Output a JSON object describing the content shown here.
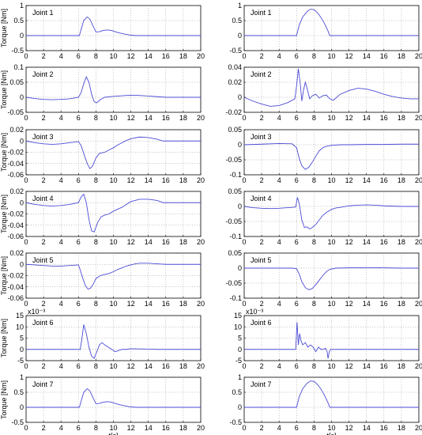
{
  "figure": {
    "line_color": "#4b4bd6"
  },
  "chart_data": [
    {
      "id": "L1",
      "type": "line",
      "title": "Joint 1",
      "ylabel": "Torque [Nm]",
      "xlabel": "",
      "xlim": [
        0,
        20
      ],
      "ylim": [
        -0.5,
        1
      ],
      "xticks": [
        "0",
        "2",
        "4",
        "6",
        "8",
        "10",
        "12",
        "14",
        "16",
        "18",
        "20"
      ],
      "yticks": [
        "1",
        "0.5",
        "0",
        "-0.5"
      ],
      "ytick_values": [
        1,
        0.5,
        0,
        -0.5
      ],
      "exponent": "",
      "x": [
        0,
        6.1,
        6.3,
        6.6,
        7.0,
        7.3,
        7.7,
        8.0,
        8.4,
        8.8,
        9.3,
        9.8,
        10.3,
        10.8,
        11.3,
        11.8,
        12.2,
        12.6,
        20
      ],
      "y": [
        0,
        0,
        0.2,
        0.5,
        0.62,
        0.55,
        0.3,
        0.12,
        0.13,
        0.17,
        0.19,
        0.17,
        0.12,
        0.08,
        0.05,
        0.02,
        0.01,
        0,
        0
      ]
    },
    {
      "id": "R1",
      "type": "line",
      "title": "Joint 1",
      "ylabel": "",
      "xlabel": "",
      "xlim": [
        0,
        20
      ],
      "ylim": [
        -0.5,
        1
      ],
      "xticks": [
        "0",
        "2",
        "4",
        "6",
        "8",
        "10",
        "12",
        "14",
        "16",
        "18",
        "20"
      ],
      "yticks": [
        "1",
        "0.5",
        "0",
        "-0.5"
      ],
      "ytick_values": [
        1,
        0.5,
        0,
        -0.5
      ],
      "exponent": "",
      "x": [
        0,
        6.0,
        6.3,
        6.7,
        7.2,
        7.6,
        8.0,
        8.4,
        8.8,
        9.2,
        9.6,
        9.8,
        20
      ],
      "y": [
        0,
        0,
        0.35,
        0.62,
        0.8,
        0.88,
        0.86,
        0.76,
        0.6,
        0.4,
        0.15,
        0,
        0
      ]
    },
    {
      "id": "L2",
      "type": "line",
      "title": "Joint 2",
      "ylabel": "Torque [Nm]",
      "xlabel": "",
      "xlim": [
        0,
        20
      ],
      "ylim": [
        -0.05,
        0.1
      ],
      "xticks": [
        "0",
        "2",
        "4",
        "6",
        "8",
        "10",
        "12",
        "14",
        "16",
        "18",
        "20"
      ],
      "yticks": [
        "0.1",
        "0.05",
        "0",
        "-0.05"
      ],
      "ytick_values": [
        0.1,
        0.05,
        0,
        -0.05
      ],
      "exponent": "",
      "x": [
        0,
        1,
        2,
        3,
        4,
        5,
        6,
        6.3,
        6.6,
        6.9,
        7.2,
        7.5,
        7.8,
        8.1,
        8.5,
        9,
        10,
        11,
        12,
        13,
        14,
        15,
        16,
        20
      ],
      "y": [
        0,
        -0.004,
        -0.007,
        -0.008,
        -0.007,
        -0.005,
        0,
        0.015,
        0.045,
        0.068,
        0.05,
        0.01,
        -0.015,
        -0.018,
        -0.008,
        0,
        0.003,
        0.005,
        0.007,
        0.006,
        0.004,
        0.002,
        0,
        0
      ]
    },
    {
      "id": "R2",
      "type": "line",
      "title": "Joint 2",
      "ylabel": "",
      "xlabel": "",
      "xlim": [
        0,
        20
      ],
      "ylim": [
        -0.02,
        0.04
      ],
      "xticks": [
        "0",
        "2",
        "4",
        "6",
        "8",
        "10",
        "12",
        "14",
        "16",
        "18",
        "20"
      ],
      "yticks": [
        "0.04",
        "0.02",
        "0",
        "-0.02"
      ],
      "ytick_values": [
        0.04,
        0.02,
        0,
        -0.02
      ],
      "exponent": "",
      "x": [
        0,
        1,
        2,
        3,
        4,
        5,
        5.8,
        6.0,
        6.2,
        6.4,
        6.6,
        6.8,
        7.0,
        7.2,
        7.5,
        7.8,
        8.2,
        8.6,
        9.0,
        9.4,
        9.8,
        10.2,
        10.6,
        11,
        12,
        13,
        14,
        15,
        16,
        17,
        18,
        19,
        20
      ],
      "y": [
        0,
        -0.005,
        -0.009,
        -0.012,
        -0.011,
        -0.007,
        -0.002,
        0.015,
        0.038,
        0.02,
        -0.005,
        0.01,
        0.02,
        0.012,
        -0.002,
        0.002,
        0.004,
        -0.001,
        0.002,
        0.003,
        -0.002,
        -0.004,
        0,
        0.004,
        0.009,
        0.012,
        0.011,
        0.008,
        0.004,
        0.001,
        -0.001,
        -0.002,
        -0.002
      ]
    },
    {
      "id": "L3",
      "type": "line",
      "title": "Joint 3",
      "ylabel": "Torque [Nm]",
      "xlabel": "",
      "xlim": [
        0,
        20
      ],
      "ylim": [
        -0.06,
        0.02
      ],
      "xticks": [
        "0",
        "2",
        "4",
        "6",
        "8",
        "10",
        "12",
        "14",
        "16",
        "18",
        "20"
      ],
      "yticks": [
        "0.02",
        "0",
        "-0.02",
        "-0.04",
        "-0.06"
      ],
      "ytick_values": [
        0.02,
        0,
        -0.02,
        -0.04,
        -0.06
      ],
      "exponent": "",
      "x": [
        0,
        1,
        2,
        3,
        4,
        5,
        6,
        6.3,
        6.6,
        7.0,
        7.3,
        7.6,
        8.0,
        8.4,
        9.0,
        9.5,
        10,
        10.5,
        11,
        11.5,
        12,
        13,
        14,
        15,
        15.7,
        20
      ],
      "y": [
        0,
        -0.003,
        -0.005,
        -0.006,
        -0.005,
        -0.003,
        -0.001,
        -0.008,
        -0.022,
        -0.04,
        -0.049,
        -0.045,
        -0.03,
        -0.022,
        -0.02,
        -0.016,
        -0.012,
        -0.007,
        -0.003,
        0.001,
        0.004,
        0.007,
        0.006,
        0.003,
        0,
        0
      ]
    },
    {
      "id": "R3",
      "type": "line",
      "title": "Joint 3",
      "ylabel": "",
      "xlabel": "",
      "xlim": [
        0,
        20
      ],
      "ylim": [
        -0.1,
        0.05
      ],
      "xticks": [
        "0",
        "2",
        "4",
        "6",
        "8",
        "10",
        "12",
        "14",
        "16",
        "18",
        "20"
      ],
      "yticks": [
        "0.05",
        "0",
        "-0.05",
        "-0.1"
      ],
      "ytick_values": [
        0.05,
        0,
        -0.05,
        -0.1
      ],
      "exponent": "",
      "x": [
        0,
        2,
        4,
        5.5,
        6.0,
        6.3,
        6.6,
        7.0,
        7.4,
        7.8,
        8.2,
        8.6,
        9.0,
        9.4,
        10,
        11,
        12,
        14,
        16,
        18,
        20
      ],
      "y": [
        0,
        0.002,
        0.004,
        0.003,
        -0.01,
        -0.045,
        -0.07,
        -0.082,
        -0.075,
        -0.058,
        -0.038,
        -0.02,
        -0.01,
        -0.005,
        -0.002,
        0,
        0,
        0.001,
        0.001,
        0.002,
        0.002
      ]
    },
    {
      "id": "L4",
      "type": "line",
      "title": "Joint 4",
      "ylabel": "Torque [Nm]",
      "xlabel": "",
      "xlim": [
        0,
        20
      ],
      "ylim": [
        -0.06,
        0.02
      ],
      "xticks": [
        "0",
        "2",
        "4",
        "6",
        "8",
        "10",
        "12",
        "14",
        "16",
        "18",
        "20"
      ],
      "yticks": [
        "0.02",
        "0",
        "-0.02",
        "-0.04",
        "-0.06"
      ],
      "ytick_values": [
        0.02,
        0,
        -0.02,
        -0.04,
        -0.06
      ],
      "exponent": "",
      "x": [
        0,
        1,
        2,
        3,
        4,
        5,
        6,
        6.3,
        6.6,
        6.9,
        7.2,
        7.5,
        7.8,
        8.2,
        8.6,
        9,
        9.5,
        10,
        11,
        12,
        13,
        14,
        15,
        15.7,
        20
      ],
      "y": [
        0,
        -0.003,
        -0.005,
        -0.006,
        -0.005,
        -0.003,
        0,
        0.01,
        0.015,
        0,
        -0.03,
        -0.05,
        -0.052,
        -0.035,
        -0.025,
        -0.022,
        -0.02,
        -0.015,
        -0.008,
        0.002,
        0.006,
        0.006,
        0.004,
        0,
        0
      ]
    },
    {
      "id": "R4",
      "type": "line",
      "title": "Joint 4",
      "ylabel": "",
      "xlabel": "",
      "xlim": [
        0,
        20
      ],
      "ylim": [
        -0.1,
        0.05
      ],
      "xticks": [
        "0",
        "2",
        "4",
        "6",
        "8",
        "10",
        "12",
        "14",
        "16",
        "18",
        "20"
      ],
      "yticks": [
        "0.05",
        "0",
        "-0.05",
        "-0.1"
      ],
      "ytick_values": [
        0.05,
        0,
        -0.05,
        -0.1
      ],
      "exponent": "",
      "x": [
        0,
        1,
        2,
        3,
        4,
        5,
        5.5,
        5.9,
        6.1,
        6.3,
        6.6,
        6.9,
        7.2,
        7.5,
        7.8,
        8.2,
        8.6,
        9.0,
        9.4,
        10,
        10.5,
        11,
        12,
        13,
        14,
        15,
        16,
        17,
        18,
        19,
        20
      ],
      "y": [
        0,
        -0.004,
        -0.006,
        -0.007,
        -0.006,
        -0.004,
        -0.003,
        -0.002,
        0.03,
        0.01,
        -0.045,
        -0.07,
        -0.068,
        -0.075,
        -0.07,
        -0.06,
        -0.045,
        -0.03,
        -0.02,
        -0.01,
        -0.005,
        -0.003,
        0.002,
        0.004,
        0.005,
        0.004,
        0.002,
        0.001,
        0,
        0,
        0
      ]
    },
    {
      "id": "L5",
      "type": "line",
      "title": "Joint 5",
      "ylabel": "Torque [Nm]",
      "xlabel": "",
      "xlim": [
        0,
        20
      ],
      "ylim": [
        -0.06,
        0.02
      ],
      "xticks": [
        "0",
        "2",
        "4",
        "6",
        "8",
        "10",
        "12",
        "14",
        "16",
        "18",
        "20"
      ],
      "yticks": [
        "0.02",
        "0",
        "-0.02",
        "-0.04",
        "-0.06"
      ],
      "ytick_values": [
        0.02,
        0,
        -0.02,
        -0.04,
        -0.06
      ],
      "exponent": "",
      "x": [
        0,
        1,
        2,
        3,
        4,
        5,
        6,
        6.2,
        6.5,
        6.8,
        7.1,
        7.4,
        7.7,
        8.0,
        8.5,
        9,
        9.5,
        10,
        10.5,
        11,
        11.5,
        12,
        12.5,
        13,
        14,
        15,
        16,
        20
      ],
      "y": [
        0,
        -0.001,
        -0.002,
        -0.003,
        -0.003,
        -0.002,
        -0.001,
        -0.01,
        -0.025,
        -0.038,
        -0.044,
        -0.042,
        -0.035,
        -0.025,
        -0.02,
        -0.018,
        -0.016,
        -0.013,
        -0.009,
        -0.006,
        -0.003,
        -0.001,
        0.001,
        0.002,
        0.002,
        0.001,
        0,
        0
      ]
    },
    {
      "id": "R5",
      "type": "line",
      "title": "Joint 5",
      "ylabel": "",
      "xlabel": "",
      "xlim": [
        0,
        20
      ],
      "ylim": [
        -0.1,
        0.05
      ],
      "xticks": [
        "0",
        "2",
        "4",
        "6",
        "8",
        "10",
        "12",
        "14",
        "16",
        "18",
        "20"
      ],
      "yticks": [
        "0.05",
        "0",
        "-0.05",
        "-0.1"
      ],
      "ytick_values": [
        0.05,
        0,
        -0.05,
        -0.1
      ],
      "exponent": "",
      "x": [
        0,
        2,
        4,
        5.5,
        6.0,
        6.3,
        6.6,
        7.0,
        7.4,
        7.8,
        8.2,
        8.6,
        9.0,
        9.4,
        9.8,
        10.5,
        12,
        14,
        16,
        18,
        20
      ],
      "y": [
        0,
        0,
        0,
        0,
        -0.002,
        -0.02,
        -0.045,
        -0.065,
        -0.072,
        -0.068,
        -0.055,
        -0.04,
        -0.025,
        -0.012,
        -0.004,
        0,
        0.001,
        0.001,
        0.001,
        0,
        0
      ]
    },
    {
      "id": "L6",
      "type": "line",
      "title": "Joint 6",
      "ylabel": "Torque [Nm]",
      "xlabel": "",
      "xlim": [
        0,
        20
      ],
      "ylim": [
        -0.005,
        0.015
      ],
      "xticks": [
        "0",
        "2",
        "4",
        "6",
        "8",
        "10",
        "12",
        "14",
        "16",
        "18",
        "20"
      ],
      "yticks": [
        "15",
        "10",
        "5",
        "0",
        "-5"
      ],
      "ytick_values": [
        0.015,
        0.01,
        0.005,
        0,
        -0.005
      ],
      "exponent": "x10⁻³",
      "x": [
        0,
        6.2,
        6.4,
        6.6,
        6.9,
        7.2,
        7.5,
        7.8,
        8.1,
        8.4,
        8.7,
        9.0,
        9.4,
        9.8,
        10.2,
        10.6,
        11,
        11.5,
        12,
        13,
        14,
        15,
        16,
        20
      ],
      "y": [
        0,
        0,
        0.005,
        0.011,
        0.007,
        0.001,
        -0.003,
        -0.004,
        -0.001,
        0.002,
        0.003,
        0.002,
        0.001,
        0,
        -0.001,
        -0.0005,
        0,
        0,
        0.0003,
        0.0002,
        0.0001,
        0,
        0,
        0
      ]
    },
    {
      "id": "R6",
      "type": "line",
      "title": "Joint 6",
      "ylabel": "",
      "xlabel": "",
      "xlim": [
        0,
        20
      ],
      "ylim": [
        -0.005,
        0.015
      ],
      "xticks": [
        "0",
        "2",
        "4",
        "6",
        "8",
        "10",
        "12",
        "14",
        "16",
        "18",
        "20"
      ],
      "yticks": [
        "15",
        "10",
        "5",
        "0",
        "-5"
      ],
      "ytick_values": [
        0.015,
        0.01,
        0.005,
        0,
        -0.005
      ],
      "exponent": "x10⁻³",
      "x": [
        0,
        5.9,
        6.05,
        6.2,
        6.35,
        6.5,
        6.7,
        7.0,
        7.3,
        7.6,
        7.9,
        8.2,
        8.5,
        8.8,
        9.1,
        9.3,
        9.5,
        9.6,
        9.75,
        9.9,
        20
      ],
      "y": [
        0,
        0,
        0.012,
        0.002,
        0.007,
        0.004,
        0.002,
        0.003,
        0.001,
        0.002,
        0.001,
        -0.001,
        0.001,
        0,
        0,
        0.0005,
        -0.001,
        -0.004,
        -0.001,
        0,
        0
      ]
    },
    {
      "id": "L7",
      "type": "line",
      "title": "Joint 7",
      "ylabel": "Torque [Nm]",
      "xlabel": "t[s]",
      "xlim": [
        0,
        20
      ],
      "ylim": [
        -0.5,
        1
      ],
      "xticks": [
        "0",
        "2",
        "4",
        "6",
        "8",
        "10",
        "12",
        "14",
        "16",
        "18",
        "20"
      ],
      "yticks": [
        "1",
        "0.5",
        "0",
        "-0.5"
      ],
      "ytick_values": [
        1,
        0.5,
        0,
        -0.5
      ],
      "exponent": "",
      "x": [
        0,
        6.1,
        6.3,
        6.6,
        7.0,
        7.3,
        7.7,
        8.0,
        8.4,
        8.8,
        9.3,
        9.8,
        10.3,
        10.8,
        11.3,
        11.8,
        12.2,
        12.6,
        20
      ],
      "y": [
        0,
        0,
        0.2,
        0.5,
        0.62,
        0.55,
        0.3,
        0.12,
        0.13,
        0.17,
        0.19,
        0.17,
        0.12,
        0.08,
        0.05,
        0.02,
        0.01,
        0,
        0
      ]
    },
    {
      "id": "R7",
      "type": "line",
      "title": "Joint 7",
      "ylabel": "",
      "xlabel": "t[s]",
      "xlim": [
        0,
        20
      ],
      "ylim": [
        -0.5,
        1
      ],
      "xticks": [
        "0",
        "2",
        "4",
        "6",
        "8",
        "10",
        "12",
        "14",
        "16",
        "18",
        "20"
      ],
      "yticks": [
        "1",
        "0.5",
        "0",
        "-0.5"
      ],
      "ytick_values": [
        1,
        0.5,
        0,
        -0.5
      ],
      "exponent": "",
      "x": [
        0,
        6.0,
        6.3,
        6.7,
        7.2,
        7.6,
        8.0,
        8.4,
        8.8,
        9.2,
        9.6,
        9.8,
        20
      ],
      "y": [
        0,
        0,
        0.35,
        0.62,
        0.8,
        0.88,
        0.86,
        0.76,
        0.6,
        0.4,
        0.15,
        0,
        0
      ]
    }
  ]
}
